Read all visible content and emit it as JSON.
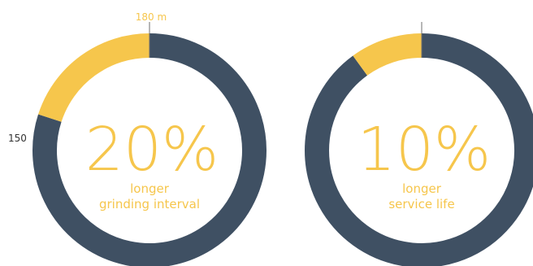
{
  "colors": {
    "accent": "#f6c64c",
    "track": "#3f5063",
    "tick_line": "#6f6f6f",
    "text_dark": "#333333"
  },
  "chart_data": [
    {
      "type": "pie",
      "values": [
        20,
        80
      ],
      "labels": [
        "",
        ""
      ],
      "big_label": "20%",
      "caption_lines": [
        "longer",
        "grinding interval"
      ],
      "ticks": [
        {
          "label": "180 m",
          "position": "top"
        },
        {
          "label": "150",
          "position": "left"
        }
      ]
    },
    {
      "type": "pie",
      "values": [
        10,
        90
      ],
      "labels": [
        "",
        ""
      ],
      "big_label": "10%",
      "caption_lines": [
        "longer",
        "service life"
      ],
      "ticks": []
    }
  ]
}
